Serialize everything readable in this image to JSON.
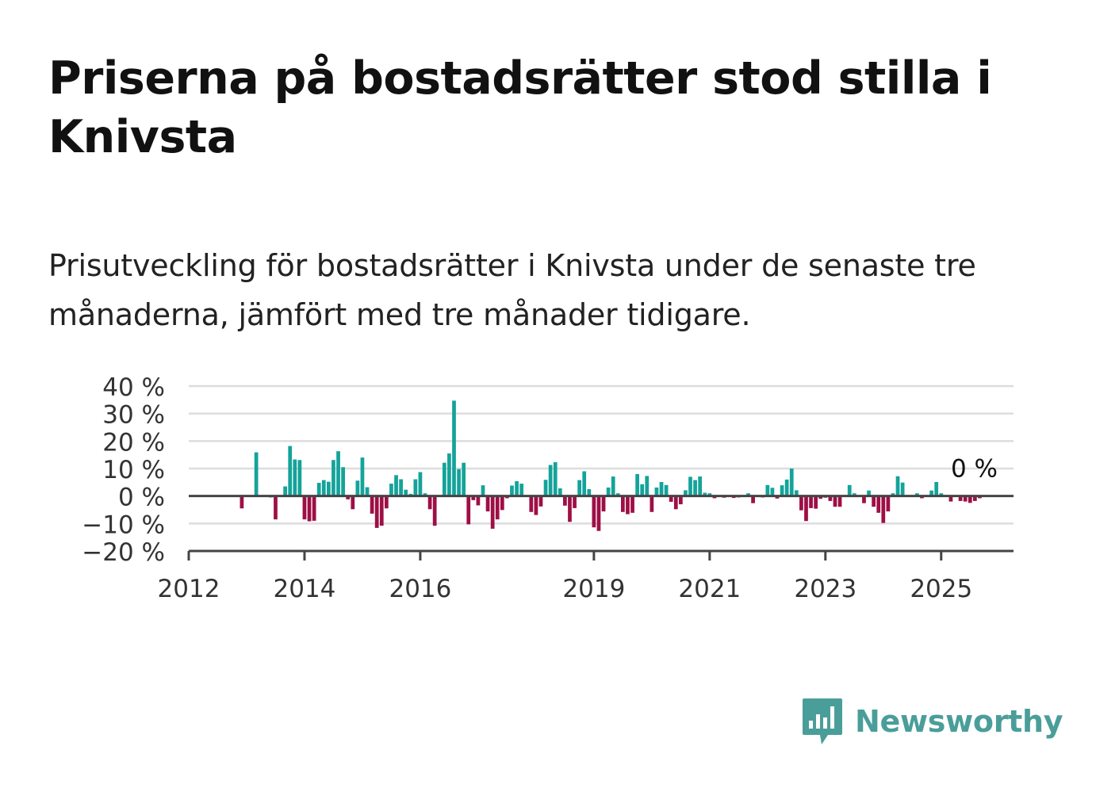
{
  "title": "Priserna på bostadsrätter stod stilla i Knivsta",
  "subtitle": "Prisutveckling för bostadsrätter i Knivsta under de senaste tre månaderna, jämfört med tre månader tidigare.",
  "brand": {
    "name": "Newsworthy",
    "icon": "newsworthy-logo-icon"
  },
  "colors": {
    "positive": "#14a39a",
    "negative": "#9e0f46",
    "grid": "#dddddd",
    "axis": "#444444",
    "brand": "#4a9e9a"
  },
  "chart_data": {
    "type": "bar",
    "y_tick_labels": [
      "40 %",
      "30 %",
      "20 %",
      "10 %",
      "0 %",
      "−10 %",
      "−20 %"
    ],
    "y_ticks": [
      40,
      30,
      20,
      10,
      0,
      -10,
      -20
    ],
    "x_tick_labels": [
      "2012",
      "2014",
      "2016",
      "2019",
      "2021",
      "2023",
      "2025"
    ],
    "x_ticks": [
      "2012-01",
      "2014-01",
      "2016-01",
      "2019-01",
      "2021-01",
      "2023-01",
      "2025-01"
    ],
    "ylim": [
      -20,
      40
    ],
    "xlim": [
      "2012-01",
      "2026-04"
    ],
    "grid": true,
    "last_value_label": "0 %",
    "series": [
      {
        "start": "2012-01",
        "values": [
          null,
          null,
          null,
          null,
          null,
          null,
          null,
          null,
          null,
          null,
          null,
          -4.5,
          null,
          null,
          15.9,
          null,
          null,
          -0.5,
          -8.5,
          null,
          3.5,
          18.2,
          13.3,
          13.1,
          -8.5,
          -9.2,
          -9.0,
          4.8,
          5.8,
          5.2,
          13.1,
          16.3,
          10.5,
          -1.2,
          -4.8,
          5.6,
          14.0,
          3.2,
          -6.4,
          -11.6,
          -10.8,
          -4.5,
          4.5,
          7.6,
          6.1,
          2.3,
          0.8,
          6.1,
          8.7,
          1.0,
          -4.8,
          -10.8,
          null,
          12.1,
          15.5,
          34.7,
          9.8,
          12.1,
          -10.3,
          -1.5,
          -3.4,
          3.9,
          -5.6,
          -11.9,
          -8.5,
          -5.1,
          -0.8,
          3.8,
          5.4,
          4.5,
          null,
          -5.8,
          -6.9,
          -3.8,
          5.9,
          11.3,
          12.3,
          2.8,
          -3.5,
          -9.4,
          -4.4,
          5.8,
          9.0,
          2.5,
          -11.4,
          -12.7,
          -5.6,
          3.1,
          7.1,
          1.0,
          -5.8,
          -6.6,
          -6.1,
          8.0,
          4.3,
          7.3,
          -5.8,
          3.1,
          5.1,
          4.0,
          -2.1,
          -4.8,
          -3.0,
          2.1,
          7.0,
          5.8,
          7.1,
          1.2,
          1.0,
          -0.8,
          null,
          -0.6,
          null,
          -0.7,
          -0.5,
          null,
          1.0,
          -2.6,
          null,
          -0.5,
          4.0,
          3.0,
          -0.9,
          3.9,
          6.0,
          10.0,
          2.1,
          -5.2,
          -9.1,
          -4.4,
          -4.6,
          -1.0,
          -0.6,
          -1.8,
          -3.9,
          -3.9,
          null,
          4.0,
          1.0,
          null,
          -2.6,
          2.0,
          -3.9,
          -6.1,
          -9.8,
          -5.6,
          1.0,
          7.2,
          4.9,
          null,
          null,
          1.0,
          -0.8,
          null,
          2.0,
          5.1,
          1.0,
          null,
          -2.0,
          null,
          -1.8,
          -2.0,
          -2.5,
          -1.8,
          -0.8,
          0
        ]
      }
    ]
  }
}
